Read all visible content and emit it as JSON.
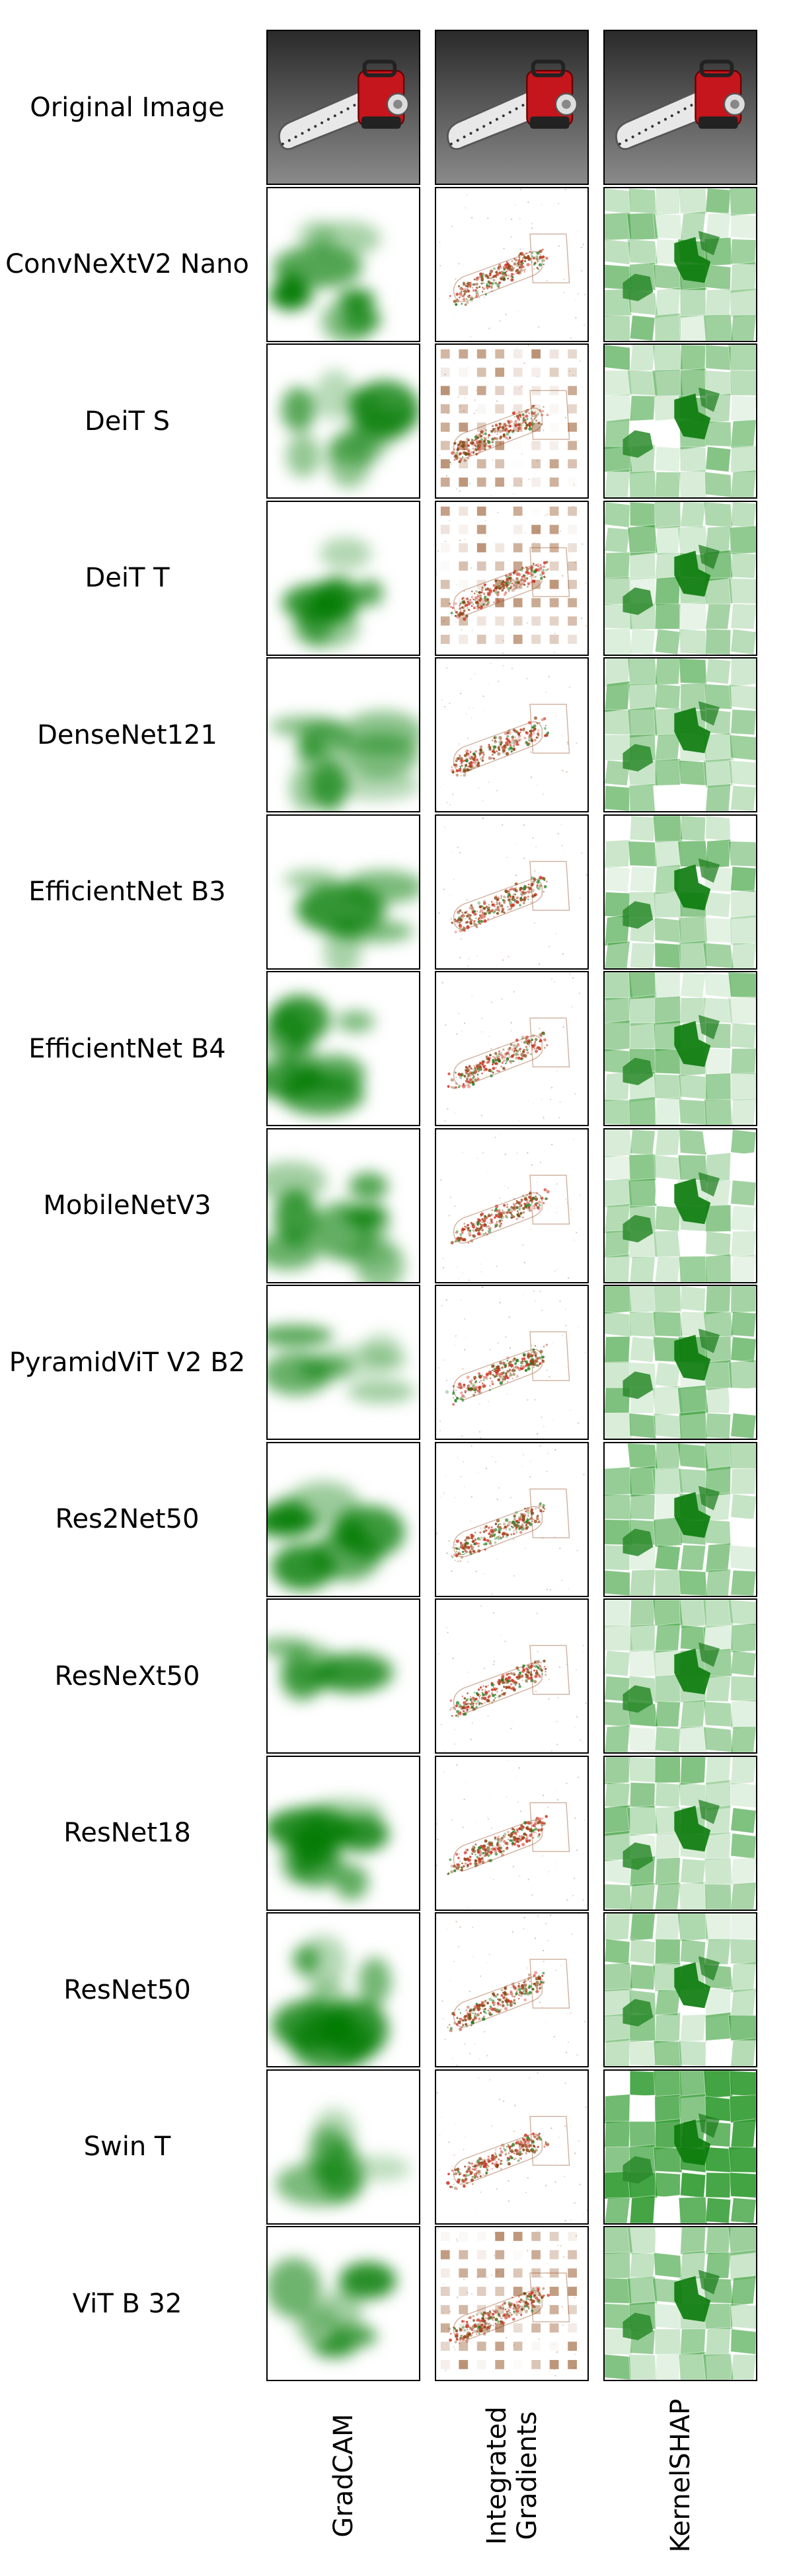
{
  "columns": [
    "GradCAM",
    "Integrated Gradients",
    "KernelSHAP"
  ],
  "columns_display": [
    "GradCAM",
    "Integrated\nGradients",
    "KernelSHAP"
  ],
  "rows": [
    "Original Image",
    "ConvNeXtV2 Nano",
    "DeiT S",
    "DeiT T",
    "DenseNet121",
    "EfficientNet B3",
    "EfficientNet B4",
    "MobileNetV3",
    "PyramidViT V2 B2",
    "Res2Net50",
    "ResNeXt50",
    "ResNet18",
    "ResNet50",
    "Swin T",
    "ViT B 32"
  ],
  "colors": {
    "gradcam": "#007a00",
    "shap": "#2e9a2e",
    "ig_dark": "#8b4513",
    "ig_red": "#d03020",
    "ig_green": "#208020",
    "chainsaw_red": "#c4161c"
  }
}
